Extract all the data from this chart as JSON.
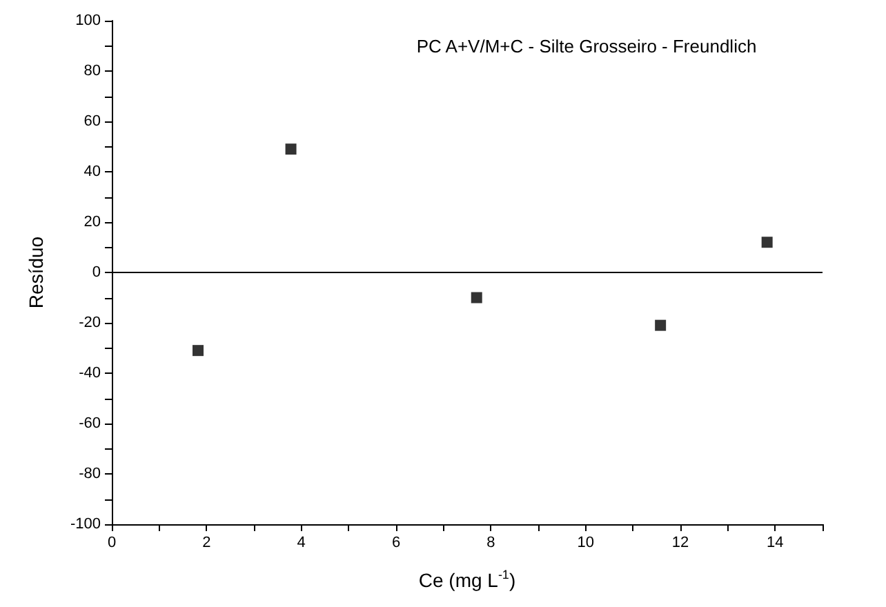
{
  "chart_data": {
    "type": "scatter",
    "title": "PC A+V/M+C - Silte Grosseiro - Freundlich",
    "xlabel": "Ce (mg L$^{-1}$)",
    "ylabel": "Resíduo",
    "series": [
      {
        "color": "#000000",
        "x": [
          1.82,
          3.78,
          7.7,
          11.58,
          13.83
        ],
        "values": [
          -31,
          49,
          -10,
          -21,
          12
        ]
      }
    ],
    "xlim": [
      0,
      15
    ],
    "xticks": [
      0,
      {
        "value": 1,
        "label": null
      },
      2,
      {
        "value": 3,
        "label": null
      },
      4,
      {
        "value": 5,
        "label": null
      },
      6,
      {
        "value": 7,
        "label": null
      },
      8,
      {
        "value": 9,
        "label": null
      },
      10,
      {
        "value": 11,
        "label": null
      },
      12,
      {
        "value": 13,
        "label": null
      },
      14,
      {
        "value": 15,
        "label": null
      }
    ],
    "ylim": [
      -100,
      100
    ],
    "yticks": [
      -100,
      {
        "value": -90,
        "label": null
      },
      -80,
      {
        "value": -70,
        "label": null
      },
      -60,
      {
        "value": -50,
        "label": null
      },
      -40,
      {
        "value": -30,
        "label": null
      },
      -20,
      {
        "value": -10,
        "label": null
      },
      0,
      {
        "value": 10,
        "label": null
      },
      20,
      {
        "value": 30,
        "label": null
      },
      40,
      {
        "value": 50,
        "label": null
      },
      60,
      {
        "value": 70,
        "label": null
      },
      80,
      {
        "value": 90,
        "label": null
      },
      100
    ],
    "ref_lines": [
      {
        "axis": "y",
        "value": 0,
        "color": "#000000"
      }
    ],
    "grid": false,
    "marker": "square"
  }
}
